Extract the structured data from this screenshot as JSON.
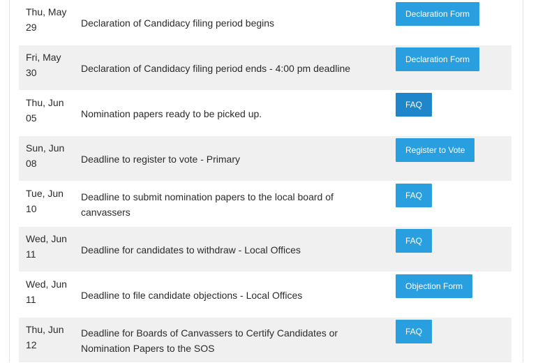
{
  "rows": [
    {
      "date_line1": "Thu, May",
      "date_line2": "29",
      "description": "Declaration of Candidacy filing period begins",
      "action": "Declaration Form"
    },
    {
      "date_line1": "Fri, May",
      "date_line2": "30",
      "description": "Declaration of Candidacy filing period ends - 4:00 pm deadline",
      "action": "Declaration Form"
    },
    {
      "date_line1": "Thu, Jun",
      "date_line2": "05",
      "description": "Nomination papers ready to be picked up.",
      "action": "FAQ"
    },
    {
      "date_line1": "Sun, Jun",
      "date_line2": "08",
      "description": "Deadline to register to vote - Primary",
      "action": "Register to Vote"
    },
    {
      "date_line1": "Tue, Jun",
      "date_line2": "10",
      "description": "Deadline to submit nomination papers to the local board of canvassers",
      "action": "FAQ"
    },
    {
      "date_line1": "Wed, Jun",
      "date_line2": "11",
      "description": "Deadline for candidates to withdraw - Local Offices",
      "action": "FAQ"
    },
    {
      "date_line1": "Wed, Jun",
      "date_line2": "11",
      "description": "Deadline to file candidate objections - Local Offices",
      "action": "Objection Form"
    },
    {
      "date_line1": "Thu, Jun",
      "date_line2": "12",
      "description": "Deadline for Boards of Canvassers to Certify Candidates or Nomination Papers to the SOS",
      "action": "FAQ"
    }
  ],
  "colors": {
    "button": "#2a9fe0",
    "button_faq": "#1f86c9",
    "row_shade": "#f0f0f0"
  }
}
